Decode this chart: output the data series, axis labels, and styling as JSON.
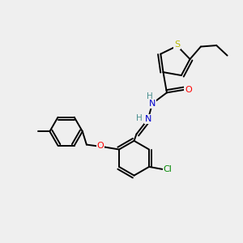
{
  "bg_color": "#efefef",
  "atom_colors": {
    "S": "#b8b800",
    "O": "#ff0000",
    "N": "#0000cc",
    "Cl": "#008800",
    "C": "#000000",
    "H": "#4a9090"
  },
  "lw": 1.4
}
